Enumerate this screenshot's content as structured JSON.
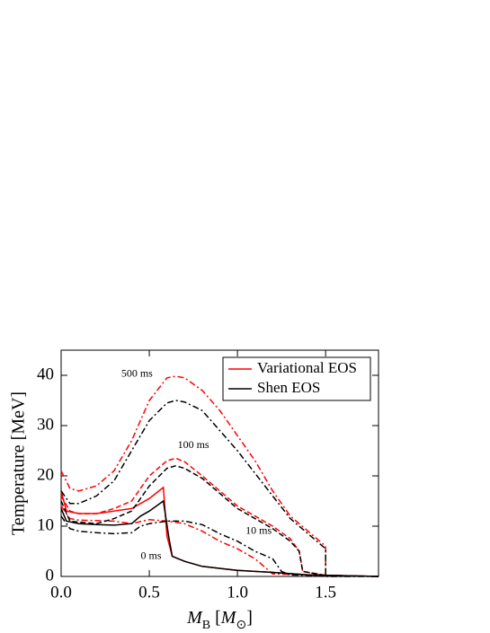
{
  "chart_data": {
    "type": "line",
    "ylabel": "Temperature [MeV]",
    "xlabel": [
      {
        "text": "M",
        "style": "italic"
      },
      {
        "text": "B",
        "style": "sub"
      },
      {
        "text": " [",
        "style": "normal"
      },
      {
        "text": "M",
        "style": "italic"
      },
      {
        "text": "⊙",
        "style": "sub"
      },
      {
        "text": "]",
        "style": "normal"
      }
    ],
    "xlim": [
      0,
      1.8
    ],
    "ylim": [
      0,
      45
    ],
    "xticks": [
      {
        "value": 0,
        "label": "0.0"
      },
      0.5,
      {
        "value": 1,
        "label": "1.0"
      },
      1.5
    ],
    "yticks": [
      0,
      10,
      20,
      30,
      40
    ],
    "legend": "upper right",
    "series": [
      {
        "name": "Variational EOS",
        "color": "#ff0000",
        "curves": [
          {
            "style": "dashdot",
            "x": [
              0,
              0.05,
              0.1,
              0.2,
              0.3,
              0.4,
              0.5,
              0.6,
              0.65,
              0.7,
              0.8,
              0.9,
              1.0,
              1.1,
              1.2,
              1.3,
              1.4,
              1.5,
              1.5
            ],
            "y": [
              21,
              17.5,
              17,
              18,
              21,
              27,
              35,
              39.5,
              39.8,
              39.5,
              37,
              33,
              28,
              23,
              17,
              12,
              9,
              6,
              0
            ]
          },
          {
            "style": "dashed",
            "x": [
              0,
              0.05,
              0.1,
              0.2,
              0.3,
              0.4,
              0.5,
              0.6,
              0.65,
              0.7,
              0.8,
              0.9,
              1.0,
              1.1,
              1.2,
              1.3,
              1.35,
              1.37,
              1.5,
              1.8
            ],
            "y": [
              16,
              13,
              12.5,
              12.5,
              13.5,
              15,
              20,
              23,
              23.5,
              22.8,
              20,
              17,
              14,
              12,
              10,
              7.5,
              5,
              1,
              0.2,
              0
            ]
          },
          {
            "style": "dashdot",
            "x": [
              0,
              0.05,
              0.1,
              0.3,
              0.4,
              0.5,
              0.6,
              0.7,
              0.8,
              0.9,
              1.0,
              1.1,
              1.2,
              1.8
            ],
            "y": [
              14,
              11.5,
              11.2,
              11,
              10.5,
              11.3,
              11,
              10.5,
              9,
              7,
              5.5,
              3.5,
              0.5,
              0
            ]
          },
          {
            "style": "solid",
            "x": [
              0,
              0.03,
              0.1,
              0.2,
              0.3,
              0.4,
              0.5,
              0.58,
              0.6,
              0.63,
              0.7,
              0.8,
              1.0,
              1.2,
              1.4,
              1.8
            ],
            "y": [
              17,
              13,
              12.5,
              12.5,
              13,
              13.5,
              15.5,
              17.7,
              8,
              4,
              3,
              2,
              1.2,
              0.8,
              0.3,
              0
            ]
          }
        ]
      },
      {
        "name": "Shen EOS",
        "color": "#000000",
        "curves": [
          {
            "style": "dashdot",
            "x": [
              0,
              0.05,
              0.1,
              0.2,
              0.3,
              0.4,
              0.5,
              0.6,
              0.65,
              0.7,
              0.8,
              0.9,
              1.0,
              1.1,
              1.2,
              1.3,
              1.4,
              1.5,
              1.5,
              1.8
            ],
            "y": [
              17,
              14.5,
              14.5,
              16,
              19,
              25,
              31,
              34.5,
              35,
              34.7,
              33,
              29,
              25,
              20.5,
              16,
              11.5,
              8.5,
              5.5,
              0,
              0
            ]
          },
          {
            "style": "dashed",
            "x": [
              0,
              0.05,
              0.1,
              0.2,
              0.3,
              0.4,
              0.5,
              0.6,
              0.65,
              0.7,
              0.8,
              0.9,
              1.0,
              1.1,
              1.2,
              1.3,
              1.35,
              1.37,
              1.5,
              1.8
            ],
            "y": [
              15,
              11,
              10.8,
              10.5,
              11.5,
              13,
              18,
              21.5,
              22,
              21.5,
              19.5,
              16.5,
              13.5,
              11.5,
              9.5,
              7,
              5,
              1,
              0.2,
              0
            ]
          },
          {
            "style": "dashdot",
            "x": [
              0,
              0.05,
              0.1,
              0.2,
              0.3,
              0.4,
              0.45,
              0.5,
              0.6,
              0.7,
              0.8,
              0.9,
              1.0,
              1.1,
              1.2,
              1.25,
              1.3,
              1.8
            ],
            "y": [
              12,
              9.5,
              9,
              8.7,
              8.5,
              8.7,
              10,
              10.5,
              11,
              11,
              10.3,
              8.5,
              7,
              5,
              3.5,
              1,
              0.3,
              0
            ]
          },
          {
            "style": "solid",
            "x": [
              0,
              0.03,
              0.1,
              0.2,
              0.3,
              0.4,
              0.45,
              0.5,
              0.58,
              0.61,
              0.63,
              0.7,
              0.8,
              1.0,
              1.2,
              1.4,
              1.8
            ],
            "y": [
              13.5,
              11,
              10.5,
              10.3,
              10.2,
              10.5,
              12,
              13,
              15,
              8,
              4,
              3,
              2,
              1.2,
              0.8,
              0.3,
              0
            ]
          }
        ]
      }
    ],
    "annotations": [
      {
        "text": "500 ms",
        "x": 0.43,
        "y": 40.2
      },
      {
        "text": "100 ms",
        "x": 0.75,
        "y": 26
      },
      {
        "text": "10 ms",
        "x": 1.12,
        "y": 9
      },
      {
        "text": "0 ms",
        "x": 0.51,
        "y": 4
      }
    ]
  }
}
